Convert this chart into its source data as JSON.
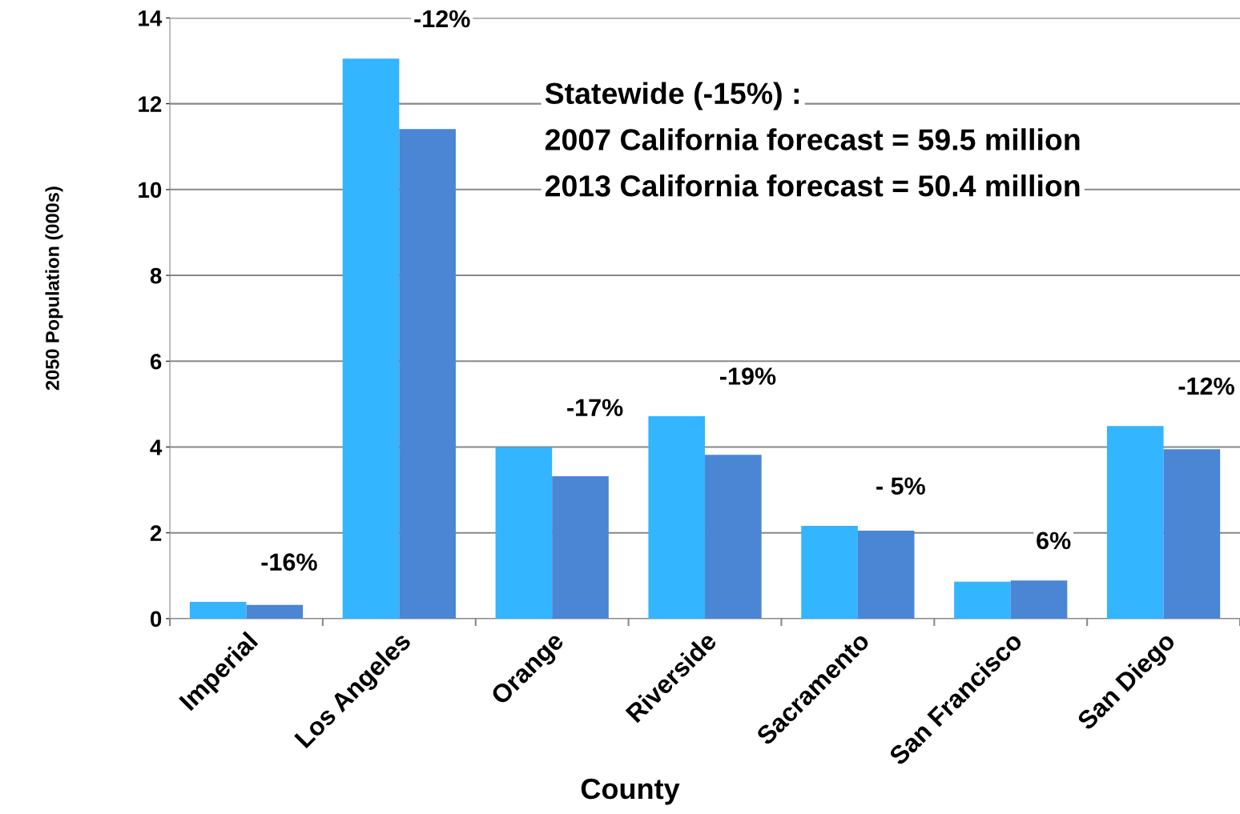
{
  "chart_data": {
    "type": "bar",
    "xlabel": "County",
    "ylabel": "2050 Population (000s)",
    "categories": [
      "Imperial",
      "Los Angeles",
      "Orange",
      "Riverside",
      "Sacramento",
      "San Francisco",
      "San Diego"
    ],
    "series": [
      {
        "color": "#33b5ff",
        "values": [
          0.39,
          13.05,
          3.99,
          4.72,
          2.16,
          0.86,
          4.49
        ]
      },
      {
        "color": "#4a86d4",
        "values": [
          0.32,
          11.41,
          3.32,
          3.82,
          2.05,
          0.89,
          3.95
        ]
      }
    ],
    "ylim": [
      0,
      14
    ],
    "yticks": [
      0,
      2,
      4,
      6,
      8,
      10,
      12,
      14
    ],
    "grid": "y",
    "legend": false,
    "annotations": [
      "-16%",
      "-12%",
      "-17%",
      "-19%",
      "- 5%",
      "6%",
      "-12%",
      "Statewide (-15%) :",
      "2007 California forecast = 59.5 million",
      "2013 California forecast = 50.4 million"
    ]
  }
}
